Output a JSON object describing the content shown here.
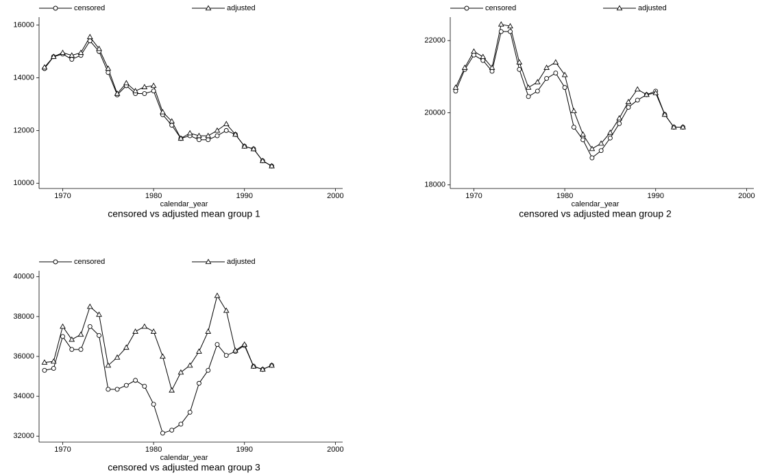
{
  "chart_data": [
    {
      "type": "line",
      "title": "censored vs adjusted mean group 1",
      "xlabel": "calendar_year",
      "x": [
        1968,
        1969,
        1970,
        1971,
        1972,
        1973,
        1974,
        1975,
        1976,
        1977,
        1978,
        1979,
        1980,
        1981,
        1982,
        1983,
        1984,
        1985,
        1986,
        1987,
        1988,
        1989,
        1990,
        1991,
        1992,
        1993
      ],
      "xlim": [
        1967.4,
        2000.8
      ],
      "xticks": [
        1970,
        1980,
        1990,
        2000
      ],
      "ylim": [
        9800,
        16300
      ],
      "yticks": [
        10000,
        12000,
        14000,
        16000
      ],
      "series": [
        {
          "name": "censored",
          "color": "#000000",
          "marker": "circle",
          "values": [
            14350,
            14800,
            14900,
            14700,
            14850,
            15400,
            15000,
            14200,
            13350,
            13700,
            13400,
            13400,
            13500,
            12600,
            12200,
            11700,
            11800,
            11650,
            11650,
            11800,
            12000,
            11850,
            11400,
            11300,
            10850,
            10650
          ]
        },
        {
          "name": "adjusted",
          "color": "#000000",
          "marker": "triangle",
          "values": [
            14400,
            14800,
            14950,
            14850,
            14950,
            15550,
            15100,
            14350,
            13400,
            13800,
            13500,
            13650,
            13700,
            12700,
            12350,
            11700,
            11900,
            11800,
            11800,
            12000,
            12250,
            11850,
            11400,
            11300,
            10850,
            10650
          ]
        }
      ]
    },
    {
      "type": "line",
      "title": "censored vs adjusted mean group 2",
      "xlabel": "calendar_year",
      "x": [
        1968,
        1969,
        1970,
        1971,
        1972,
        1973,
        1974,
        1975,
        1976,
        1977,
        1978,
        1979,
        1980,
        1981,
        1982,
        1983,
        1984,
        1985,
        1986,
        1987,
        1988,
        1989,
        1990,
        1991,
        1992,
        1993
      ],
      "xlim": [
        1967.4,
        2000.8
      ],
      "xticks": [
        1970,
        1980,
        1990,
        2000
      ],
      "ylim": [
        17900,
        22650
      ],
      "yticks": [
        18000,
        20000,
        22000
      ],
      "series": [
        {
          "name": "censored",
          "color": "#000000",
          "marker": "circle",
          "values": [
            20600,
            21200,
            21600,
            21450,
            21150,
            22250,
            22250,
            21200,
            20450,
            20600,
            20950,
            21100,
            20700,
            19600,
            19250,
            18750,
            18950,
            19300,
            19700,
            20150,
            20350,
            20500,
            20600,
            19950,
            19600,
            19600
          ]
        },
        {
          "name": "adjusted",
          "color": "#000000",
          "marker": "triangle",
          "values": [
            20700,
            21250,
            21700,
            21550,
            21250,
            22450,
            22400,
            21400,
            20700,
            20850,
            21250,
            21400,
            21050,
            20050,
            19400,
            19000,
            19150,
            19450,
            19850,
            20300,
            20650,
            20500,
            20550,
            19950,
            19600,
            19600
          ]
        }
      ]
    },
    {
      "type": "line",
      "title": "censored vs adjusted mean group 3",
      "xlabel": "calendar_year",
      "x": [
        1968,
        1969,
        1970,
        1971,
        1972,
        1973,
        1974,
        1975,
        1976,
        1977,
        1978,
        1979,
        1980,
        1981,
        1982,
        1983,
        1984,
        1985,
        1986,
        1987,
        1988,
        1989,
        1990,
        1991,
        1992,
        1993
      ],
      "xlim": [
        1967.4,
        2000.8
      ],
      "xticks": [
        1970,
        1980,
        1990,
        2000
      ],
      "ylim": [
        31700,
        40300
      ],
      "yticks": [
        32000,
        34000,
        36000,
        38000,
        40000
      ],
      "series": [
        {
          "name": "censored",
          "color": "#000000",
          "marker": "circle",
          "values": [
            35300,
            35400,
            37000,
            36350,
            36350,
            37500,
            37050,
            34350,
            34350,
            34550,
            34800,
            34500,
            33600,
            32150,
            32300,
            32600,
            33200,
            34650,
            35300,
            36600,
            36050,
            36250,
            36550,
            35500,
            35350,
            35550
          ]
        },
        {
          "name": "adjusted",
          "color": "#000000",
          "marker": "triangle",
          "values": [
            35700,
            35750,
            37500,
            36850,
            37100,
            38500,
            38100,
            35550,
            35950,
            36450,
            37250,
            37500,
            37250,
            36000,
            34300,
            35200,
            35550,
            36250,
            37250,
            39050,
            38300,
            36300,
            36600,
            35500,
            35350,
            35550
          ]
        }
      ]
    }
  ]
}
